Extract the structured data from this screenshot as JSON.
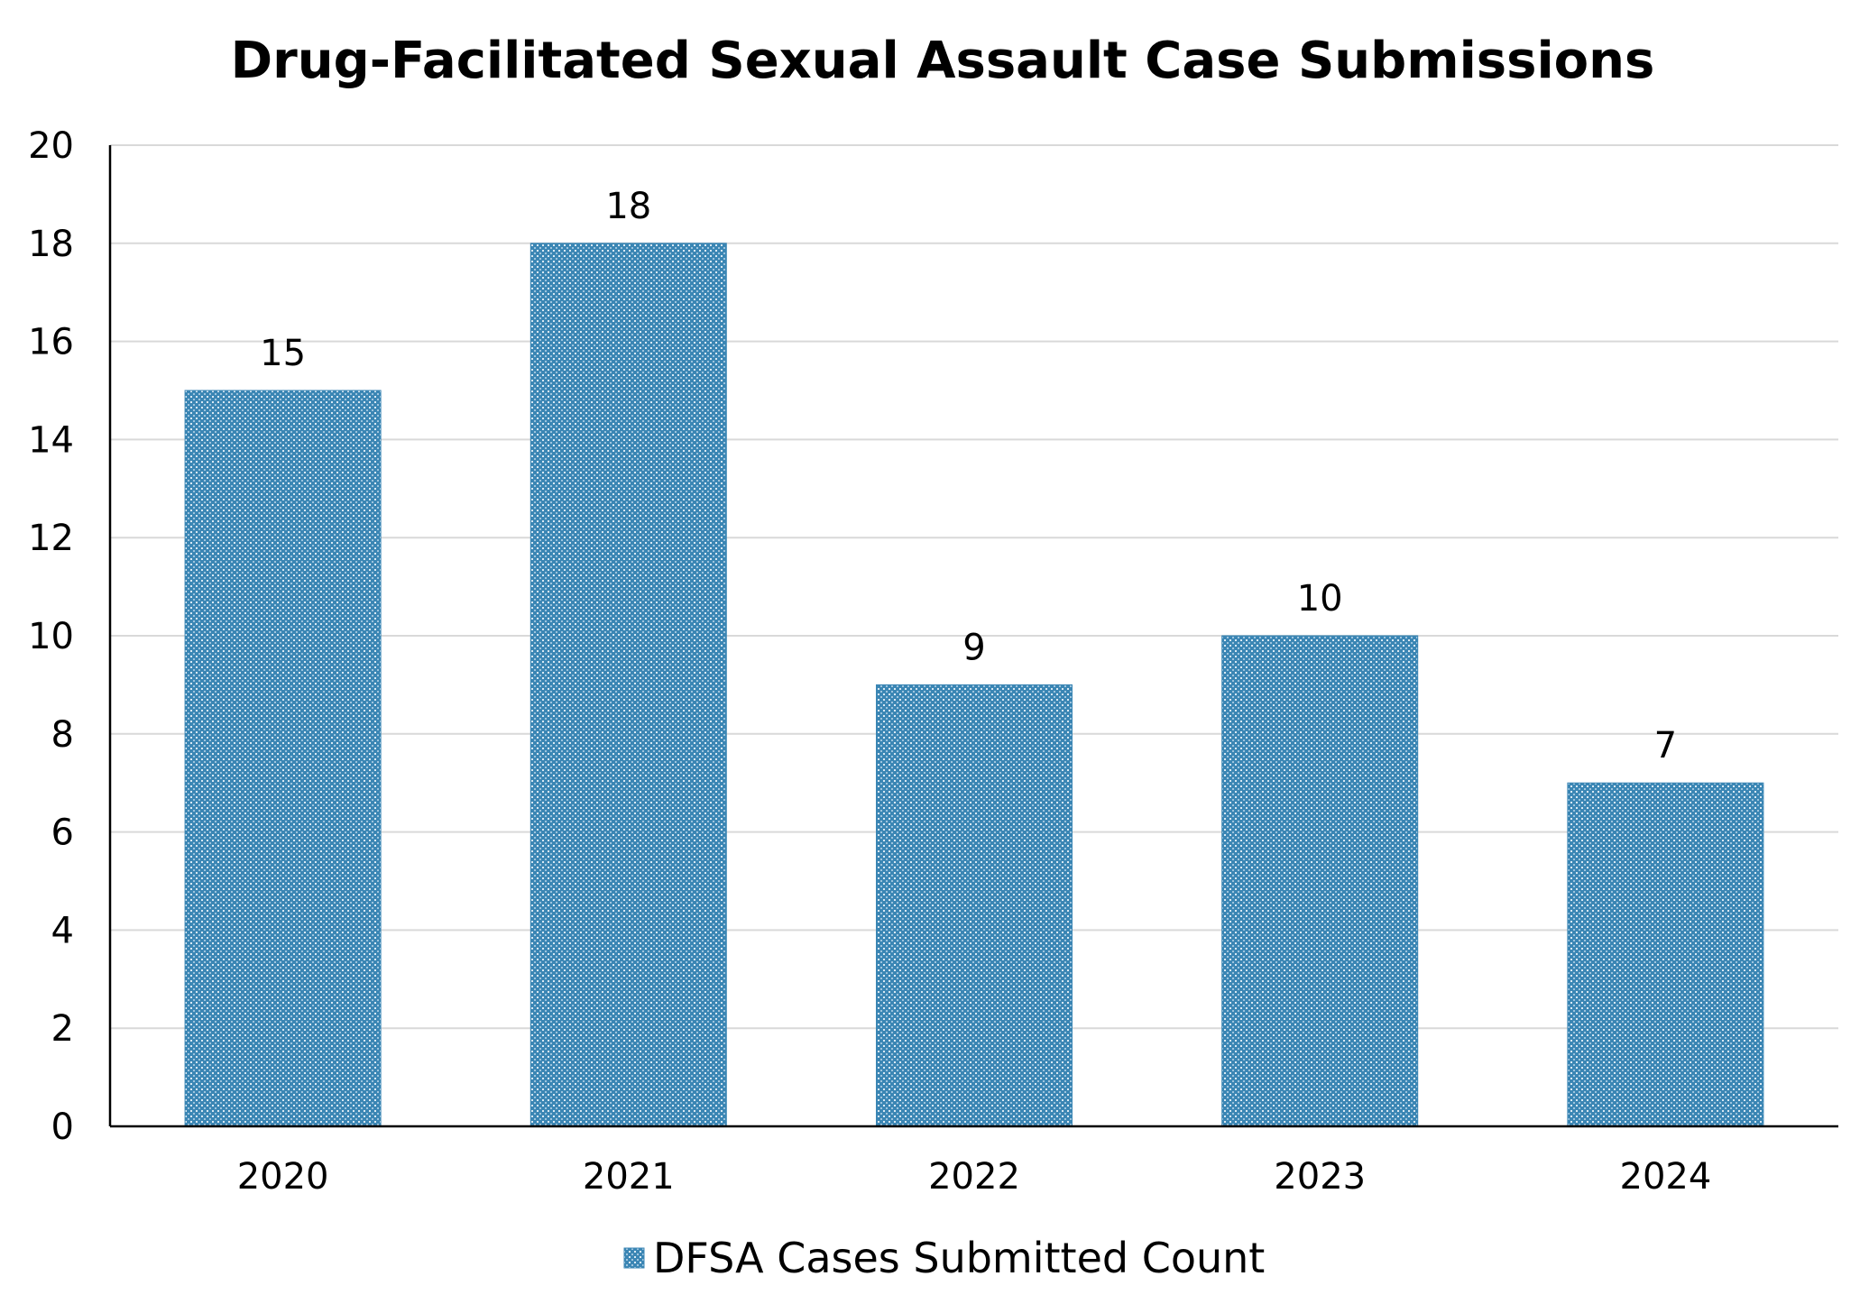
{
  "chart_data": {
    "type": "bar",
    "title": "Drug-Facilitated Sexual Assault Case Submissions",
    "categories": [
      "2020",
      "2021",
      "2022",
      "2023",
      "2024"
    ],
    "series": [
      {
        "name": "DFSA Cases Submitted Count",
        "values": [
          15,
          18,
          9,
          10,
          7
        ],
        "color": "#3b86b4"
      }
    ],
    "ylim": [
      0,
      20
    ],
    "yticks": [
      0,
      2,
      4,
      6,
      8,
      10,
      12,
      14,
      16,
      18,
      20
    ],
    "grid": true,
    "data_labels": true,
    "legend_position": "bottom"
  }
}
